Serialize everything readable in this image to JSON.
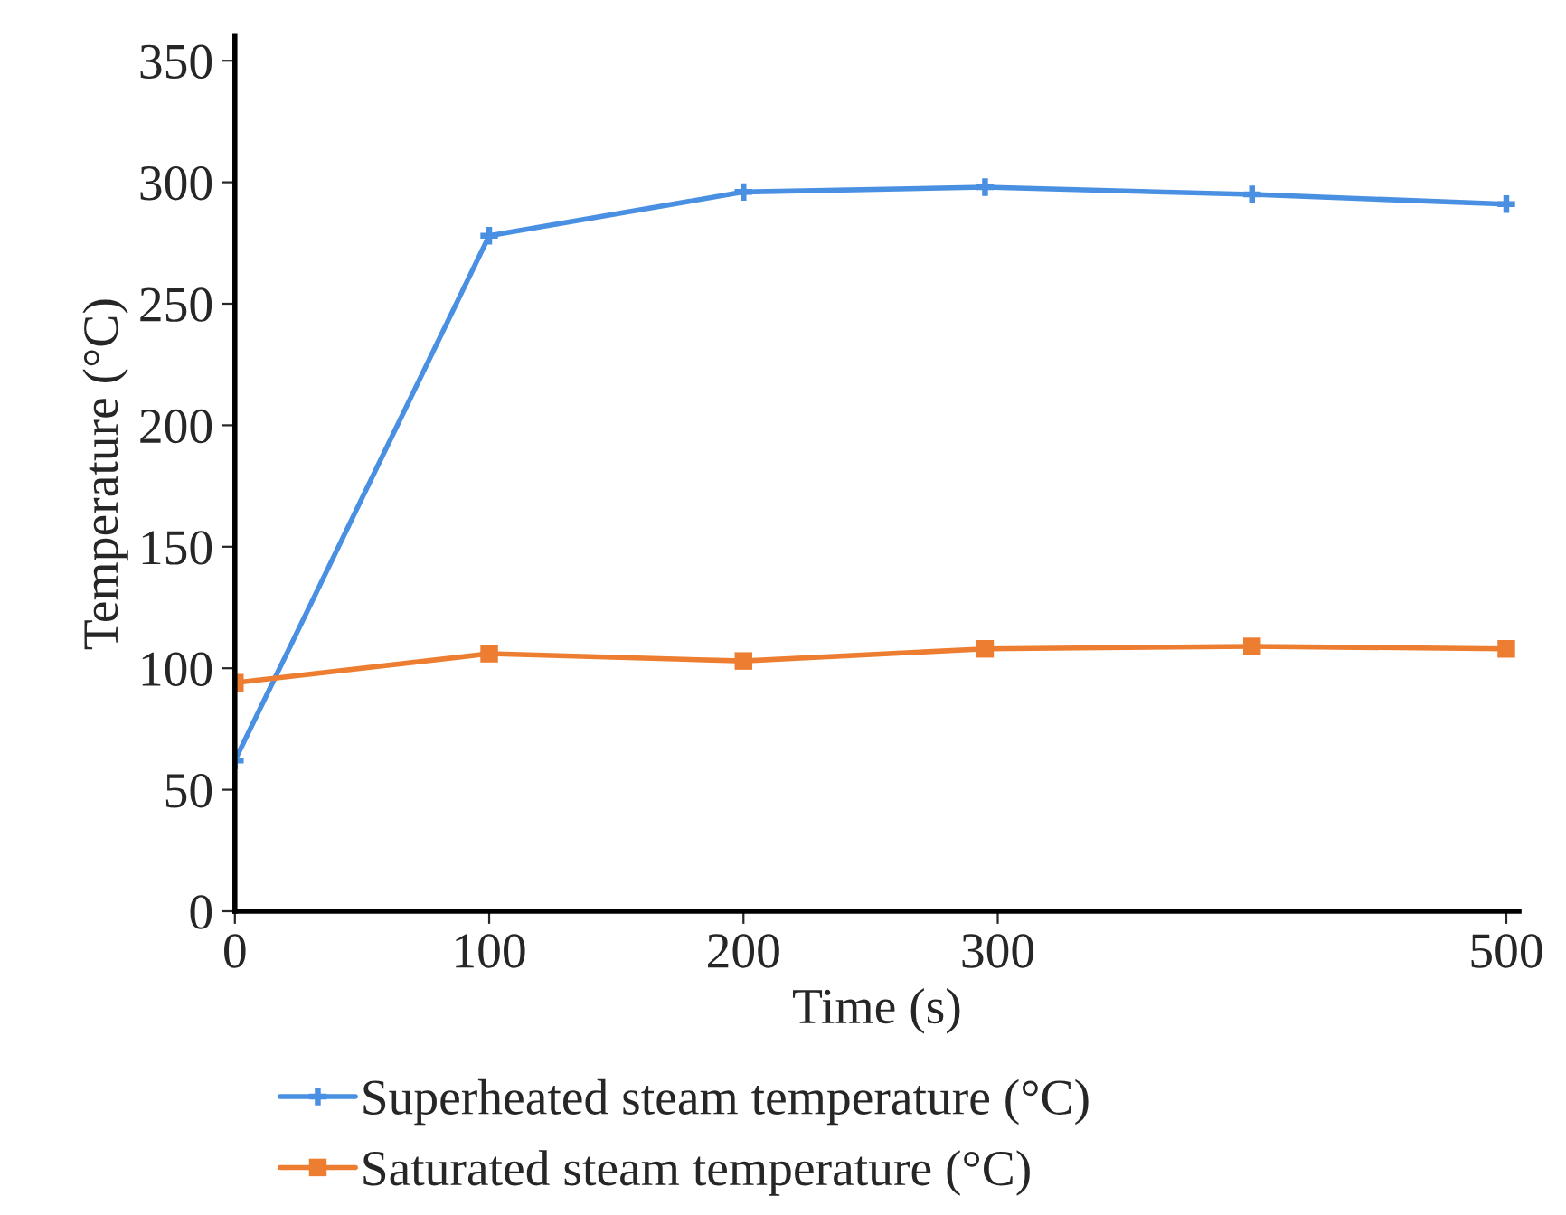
{
  "chart_data": {
    "type": "line",
    "xlabel": "Time (s)",
    "ylabel": "Temperature (°C)",
    "x": [
      0,
      100,
      200,
      295,
      400,
      500
    ],
    "series": [
      {
        "name": "Superheated steam temperature (°C)",
        "color": "#4a90e2",
        "marker": "cross",
        "values": [
          62,
          278,
          296,
          298,
          295,
          291
        ]
      },
      {
        "name": "Saturated steam temperature (°C)",
        "color": "#ed7d31",
        "marker": "square",
        "values": [
          94,
          106,
          103,
          108,
          109,
          108
        ]
      }
    ],
    "xlim": [
      0,
      505
    ],
    "ylim": [
      0,
      360
    ],
    "xticks": [
      0,
      100,
      200,
      300,
      500
    ],
    "yticks": [
      0,
      50,
      100,
      150,
      200,
      250,
      300,
      350
    ],
    "grid": false,
    "legend": "bottom",
    "line_style": "solid"
  }
}
